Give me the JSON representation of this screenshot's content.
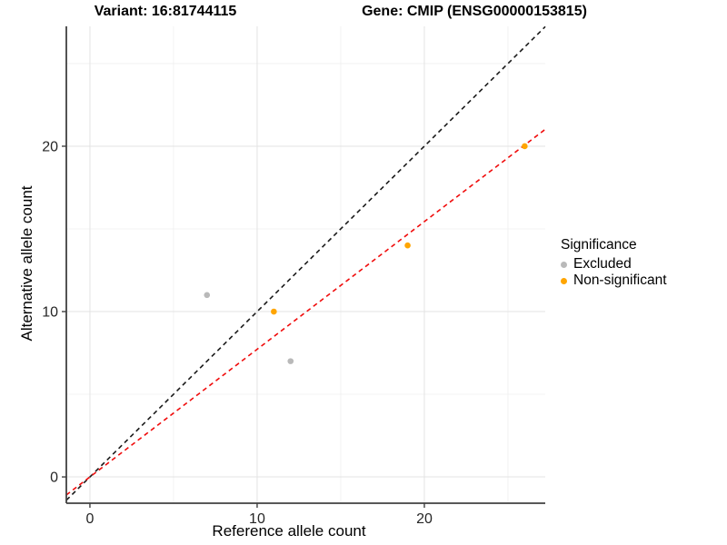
{
  "figure": {
    "title_left": "Variant: 16:81744115",
    "title_right": "Gene: CMIP (ENSG00000153815)"
  },
  "chart_data": {
    "type": "scatter",
    "xlabel": "Reference allele count",
    "ylabel": "Alternative allele count",
    "xlim": [
      -1.41,
      27.23
    ],
    "ylim": [
      -1.59,
      27.25
    ],
    "x_ticks": [
      0,
      10,
      20
    ],
    "y_ticks": [
      0,
      10,
      20
    ],
    "x_minor_gridlines": [
      5,
      15,
      25
    ],
    "y_minor_gridlines": [
      5,
      15,
      25
    ],
    "grid": true,
    "series": [
      {
        "name": "Excluded",
        "color": "#b9b9b9",
        "points": [
          {
            "x": 7,
            "y": 11
          },
          {
            "x": 12,
            "y": 7
          }
        ]
      },
      {
        "name": "Non-significant",
        "color": "#ffa500",
        "points": [
          {
            "x": 11,
            "y": 10
          },
          {
            "x": 19,
            "y": 14
          },
          {
            "x": 26,
            "y": 20
          }
        ]
      }
    ],
    "lines": [
      {
        "name": "identity-line",
        "slope": 1.0,
        "intercept": 0,
        "color": "#1a1a1a",
        "style": "dashed"
      },
      {
        "name": "fit-line",
        "slope": 0.772,
        "intercept": 0,
        "color": "#f00c0c",
        "style": "dashed"
      }
    ],
    "legend": {
      "title": "Significance",
      "position": "right",
      "items": [
        {
          "label": "Excluded",
          "color": "#b9b9b9"
        },
        {
          "label": "Non-significant",
          "color": "#ffa500"
        }
      ]
    },
    "colors": {
      "major_gridline": "#e3e3e3",
      "minor_gridline": "#efefef",
      "axis_line": "#404040",
      "tick_text": "#262626"
    }
  }
}
